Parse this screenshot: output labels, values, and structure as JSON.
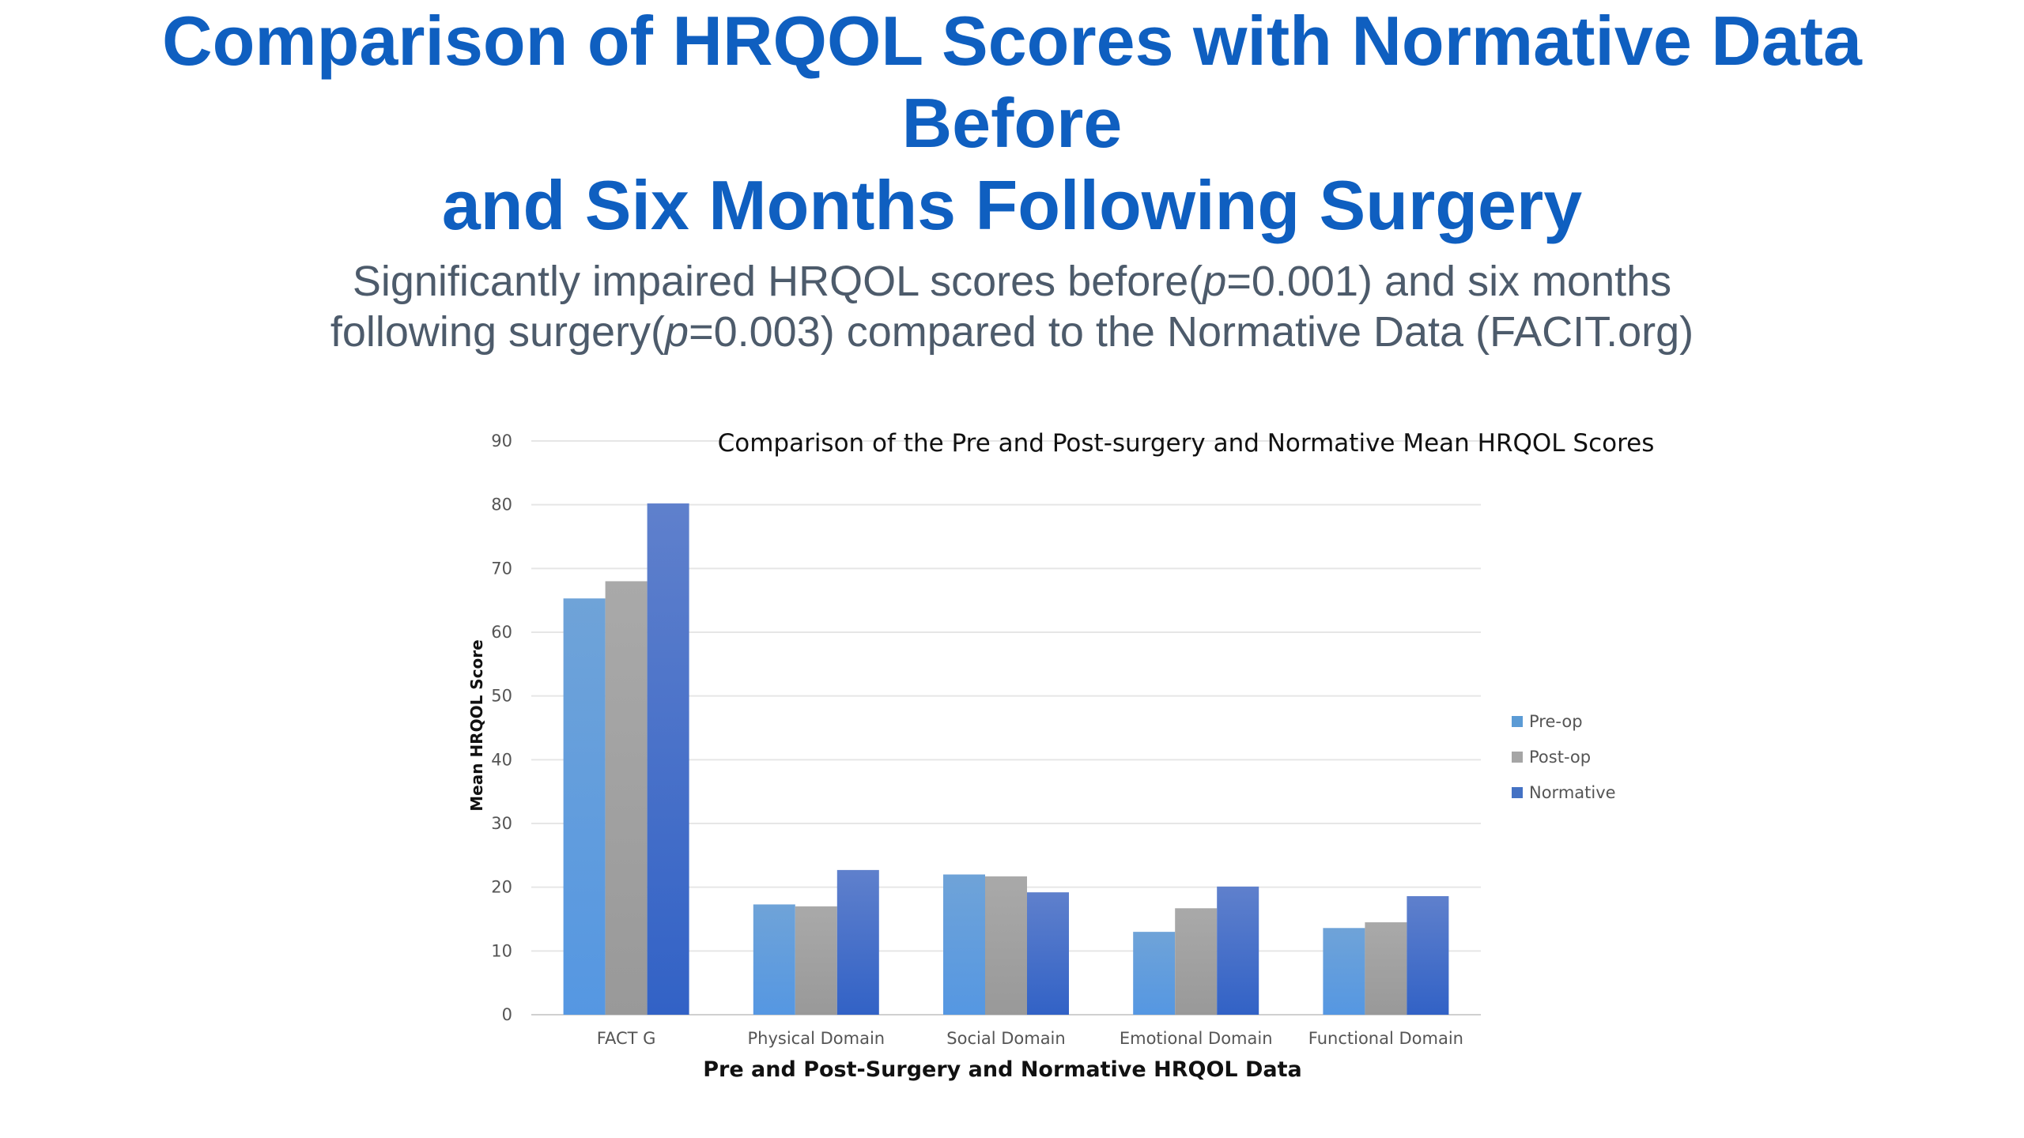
{
  "slide": {
    "title_line1": "Comparison of HRQOL Scores with Normative Data Before",
    "title_line2": "and Six Months Following Surgery",
    "subtitle_line1_pre": "Significantly impaired HRQOL scores before(",
    "subtitle_line1_p": "p",
    "subtitle_line1_post": "=0.001) and six months",
    "subtitle_line2_pre": "following surgery(",
    "subtitle_line2_p": "p",
    "subtitle_line2_post": "=0.003) compared to the Normative Data (FACIT.org)"
  },
  "chart_data": {
    "type": "bar",
    "title": "Comparison  of the Pre and Post-surgery and Normative Mean HRQOL Scores",
    "xlabel": "Pre and Post-Surgery and Normative HRQOL Data",
    "ylabel": "Mean HRQOL Score",
    "ylim": [
      0,
      90
    ],
    "yticks": [
      0,
      10,
      20,
      30,
      40,
      50,
      60,
      70,
      80,
      90
    ],
    "grid": true,
    "legend_position": "right",
    "categories": [
      "FACT G",
      "Physical Domain",
      "Social Domain",
      "Emotional Domain",
      "Functional Domain"
    ],
    "series": [
      {
        "name": "Pre-op",
        "color": "#5b9bd5",
        "values": [
          65.3,
          17.3,
          22.0,
          13.0,
          13.6
        ]
      },
      {
        "name": "Post-op",
        "color": "#a5a5a5",
        "values": [
          68.0,
          17.0,
          21.7,
          16.7,
          14.5
        ]
      },
      {
        "name": "Normative",
        "color": "#4472c4",
        "values": [
          80.2,
          22.7,
          19.2,
          20.1,
          18.6
        ]
      }
    ]
  }
}
